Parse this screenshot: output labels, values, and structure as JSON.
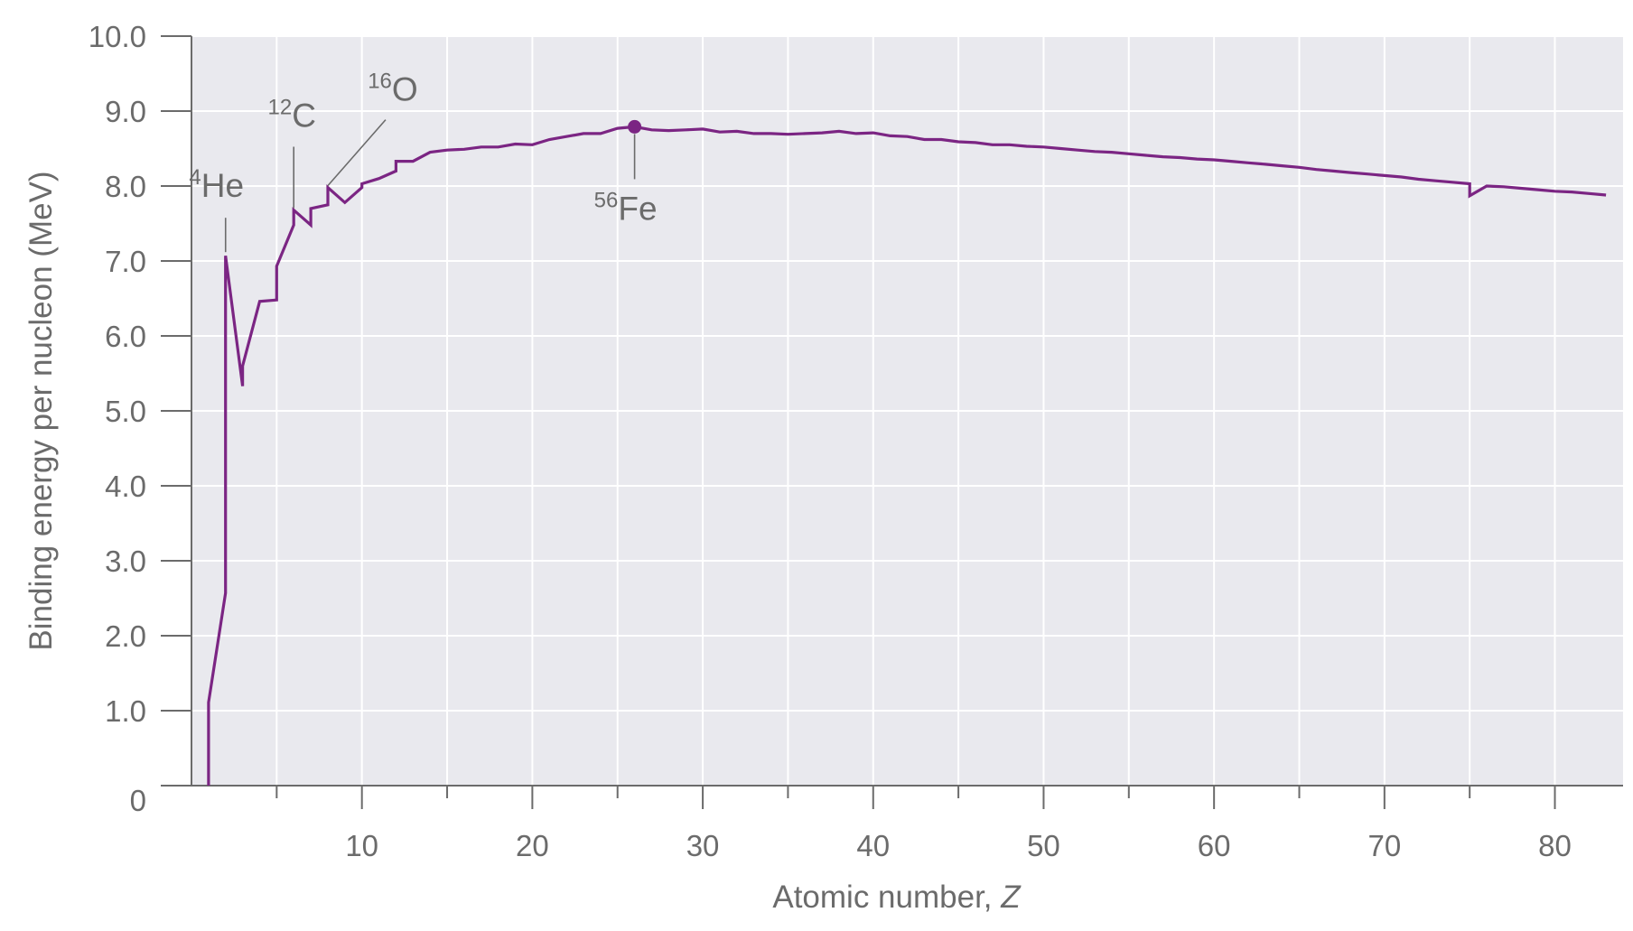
{
  "chart_data": {
    "type": "line",
    "xlabel": "Atomic number, ",
    "xlabel_var": "Z",
    "ylabel": "Binding energy per nucleon (MeV)",
    "xlim": [
      0,
      84
    ],
    "ylim": [
      0,
      10
    ],
    "x_ticks": [
      10,
      20,
      30,
      40,
      50,
      60,
      70,
      80
    ],
    "x_tick_labels": [
      "10",
      "20",
      "30",
      "40",
      "50",
      "60",
      "70",
      "80"
    ],
    "y_ticks": [
      0,
      1,
      2,
      3,
      4,
      5,
      6,
      7,
      8,
      9,
      10
    ],
    "y_tick_labels": [
      "0",
      "1.0",
      "2.0",
      "3.0",
      "4.0",
      "5.0",
      "6.0",
      "7.0",
      "8.0",
      "9.0",
      "10.0"
    ],
    "grid": true,
    "colors": {
      "line": "#7b2583",
      "plot_bg": "#e9e9ee",
      "grid": "#ffffff",
      "axis": "#6b6b6b",
      "text": "#6b6b6b"
    },
    "series": [
      {
        "x": [
          1,
          1,
          2,
          2,
          3,
          3,
          4,
          5,
          5,
          6,
          6,
          7,
          7,
          8,
          8,
          9,
          10,
          10,
          11,
          12,
          12,
          13,
          14,
          15,
          16,
          17,
          18,
          19,
          20,
          21,
          22,
          23,
          24,
          25,
          26,
          27,
          28,
          29,
          30,
          31,
          32,
          33,
          34,
          35,
          36,
          37,
          38,
          39,
          40,
          41,
          42,
          43,
          44,
          45,
          46,
          47,
          48,
          49,
          50,
          51,
          52,
          53,
          54,
          55,
          56,
          57,
          58,
          59,
          60,
          61,
          62,
          63,
          64,
          65,
          66,
          67,
          68,
          69,
          70,
          71,
          72,
          73,
          74,
          75,
          75,
          76,
          77,
          78,
          79,
          80,
          81,
          82,
          83
        ],
        "y": [
          0,
          1.11,
          2.57,
          7.07,
          5.33,
          5.6,
          6.46,
          6.48,
          6.93,
          7.48,
          7.68,
          7.48,
          7.7,
          7.75,
          7.98,
          7.78,
          7.98,
          8.03,
          8.1,
          8.2,
          8.33,
          8.33,
          8.45,
          8.48,
          8.49,
          8.52,
          8.52,
          8.56,
          8.55,
          8.62,
          8.66,
          8.7,
          8.7,
          8.77,
          8.79,
          8.75,
          8.74,
          8.75,
          8.76,
          8.72,
          8.73,
          8.7,
          8.7,
          8.69,
          8.7,
          8.71,
          8.73,
          8.7,
          8.71,
          8.67,
          8.66,
          8.62,
          8.62,
          8.59,
          8.58,
          8.55,
          8.55,
          8.53,
          8.52,
          8.5,
          8.48,
          8.46,
          8.45,
          8.43,
          8.41,
          8.39,
          8.38,
          8.36,
          8.35,
          8.33,
          8.31,
          8.29,
          8.27,
          8.25,
          8.22,
          8.2,
          8.18,
          8.16,
          8.14,
          8.12,
          8.09,
          8.07,
          8.05,
          8.03,
          7.87,
          8.0,
          7.99,
          7.97,
          7.95,
          7.93,
          7.92,
          7.9,
          7.88
        ]
      }
    ],
    "highlight_point": {
      "x": 26,
      "y": 8.79
    },
    "annotations": [
      {
        "mass": "4",
        "symbol": "He",
        "x": 2,
        "y": 7.07
      },
      {
        "mass": "12",
        "symbol": "C",
        "x": 6,
        "y": 7.68
      },
      {
        "mass": "16",
        "symbol": "O",
        "x": 8,
        "y": 7.98
      },
      {
        "mass": "56",
        "symbol": "Fe",
        "x": 26,
        "y": 8.79
      }
    ]
  }
}
